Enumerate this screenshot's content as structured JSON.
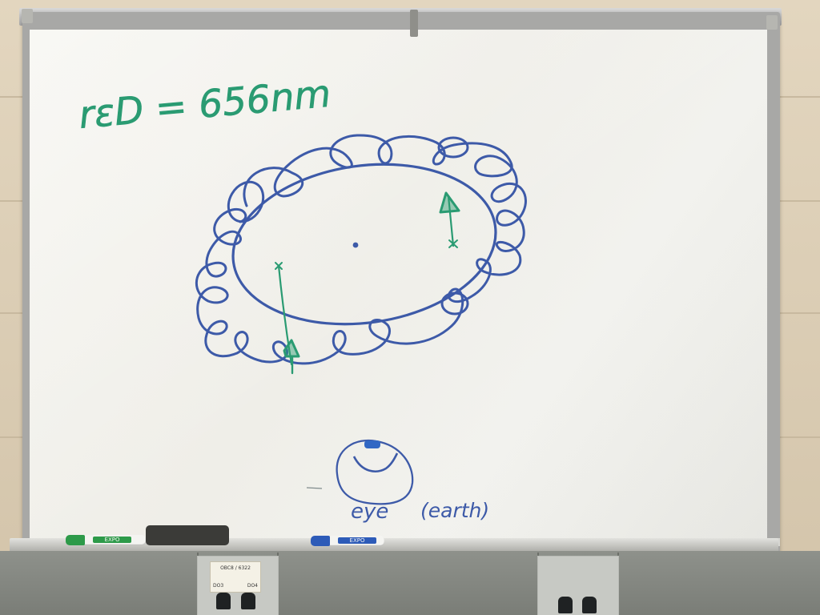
{
  "scene": {
    "subject": "whiteboard",
    "colors": {
      "blue_marker": "#3d5aa8",
      "green_marker": "#2a9b72",
      "board_surface": "#f2f2ee",
      "wall": "#dacbb1"
    },
    "handwriting": {
      "equation": "rεD = 656nm",
      "eye_label": "eye",
      "paren_label": "(earth)"
    },
    "markers": [
      {
        "name": "green-marker",
        "label": "EXPO",
        "color": "#2d9a49"
      },
      {
        "name": "blue-marker",
        "label": "EXPO",
        "color": "#2d5bb8"
      }
    ],
    "network_plate": {
      "top": "OBC8 / 6322",
      "left": "DO3",
      "right": "DO4"
    }
  }
}
